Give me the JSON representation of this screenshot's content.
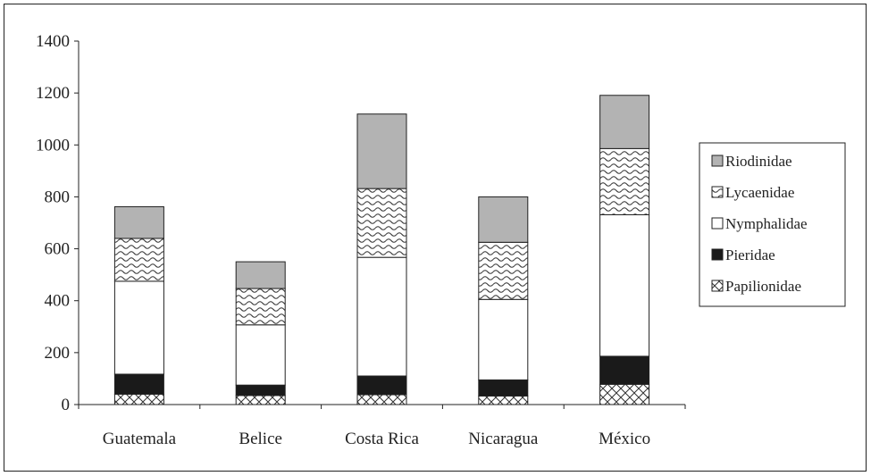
{
  "chart_data": {
    "type": "bar",
    "stacked": true,
    "categories": [
      "Guatemala",
      "Belice",
      "Costa Rica",
      "Nicaragua",
      "México"
    ],
    "series": [
      {
        "name": "Papilionidae",
        "pattern": "crosshatch",
        "values": [
          40,
          35,
          38,
          33,
          78
        ]
      },
      {
        "name": "Pieridae",
        "pattern": "solid-black",
        "values": [
          77,
          40,
          72,
          62,
          108
        ]
      },
      {
        "name": "Nymphalidae",
        "pattern": "white",
        "values": [
          358,
          232,
          457,
          310,
          545
        ]
      },
      {
        "name": "Lycaenidae",
        "pattern": "wavy",
        "values": [
          165,
          140,
          265,
          220,
          255
        ]
      },
      {
        "name": "Riodinidae",
        "pattern": "solid-gray",
        "values": [
          122,
          103,
          287,
          175,
          205
        ]
      }
    ],
    "ylim": [
      0,
      1400
    ],
    "yticks": [
      "0",
      "200",
      "400",
      "600",
      "800",
      "1000",
      "1200",
      "1400"
    ],
    "legend_position": "right",
    "grid": false,
    "colors": {
      "gray": "#b3b3b3",
      "black": "#1a1a1a",
      "white": "#ffffff",
      "line": "#222222"
    }
  }
}
